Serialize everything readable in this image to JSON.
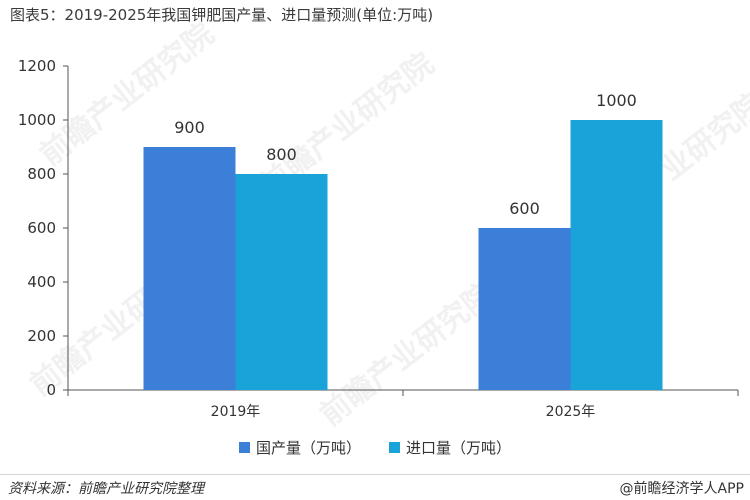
{
  "title": "图表5：2019-2025年我国钾肥国产量、进口量预测(单位:万吨)",
  "source": "资料来源：前瞻产业研究院整理",
  "credit": "@前瞻经济学人APP",
  "watermark": "前瞻产业研究院",
  "colors": {
    "domestic": "#3b7fd9",
    "imports": "#1aa3d8",
    "axis": "#555555"
  },
  "chart_data": {
    "type": "bar",
    "title": "图表5：2019-2025年我国钾肥国产量、进口量预测(单位:万吨)",
    "categories": [
      "2019年",
      "2025年"
    ],
    "series": [
      {
        "name": "国产量（万吨）",
        "values": [
          900,
          600
        ]
      },
      {
        "name": "进口量（万吨）",
        "values": [
          800,
          1000
        ]
      }
    ],
    "ylim": [
      0,
      1200
    ],
    "yticks": [
      0,
      200,
      400,
      600,
      800,
      1000,
      1200
    ],
    "grid": false,
    "data_labels": true,
    "legend_position": "bottom"
  }
}
